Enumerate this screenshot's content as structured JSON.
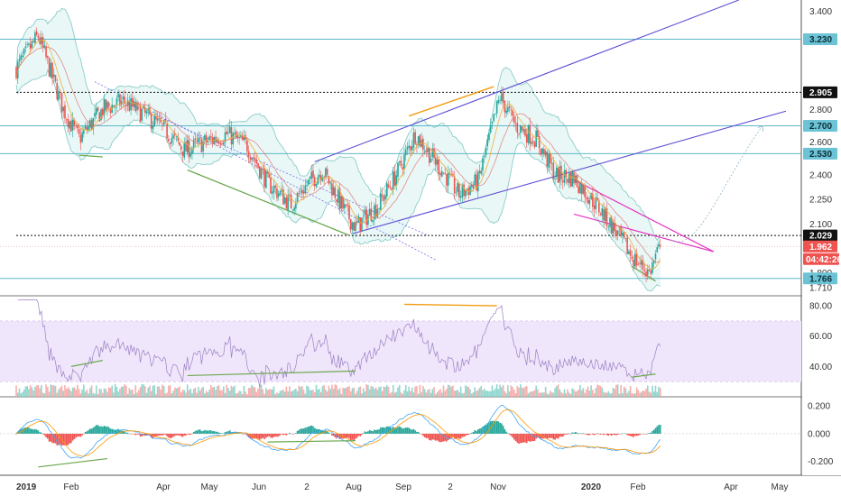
{
  "chart_data": [
    {
      "panel": "price",
      "type": "candlestick",
      "y_scale": "linear",
      "ylim": [
        1.66,
        3.47
      ],
      "y_ticks": [
        "3.400",
        "2.800",
        "2.600",
        "2.400",
        "2.250",
        "2.100",
        "1.800",
        "1.710"
      ],
      "x_ticks": [
        "2019",
        "Feb",
        "Apr",
        "May",
        "Jun",
        "2",
        "Aug",
        "Sep",
        "2",
        "Nov",
        "2020",
        "Feb",
        "Apr",
        "May"
      ],
      "close_path": [
        [
          "2019-01",
          3.05
        ],
        [
          "2019-01-15",
          3.25
        ],
        [
          "2019-01-31",
          2.8
        ],
        [
          "2019-02-10",
          2.62
        ],
        [
          "2019-02-25",
          2.8
        ],
        [
          "2019-03-10",
          2.85
        ],
        [
          "2019-03-25",
          2.76
        ],
        [
          "2019-04-05",
          2.68
        ],
        [
          "2019-04-18",
          2.55
        ],
        [
          "2019-05-01",
          2.6
        ],
        [
          "2019-05-15",
          2.65
        ],
        [
          "2019-05-28",
          2.58
        ],
        [
          "2019-06-10",
          2.35
        ],
        [
          "2019-06-25",
          2.22
        ],
        [
          "2019-07-05",
          2.34
        ],
        [
          "2019-07-15",
          2.43
        ],
        [
          "2019-07-28",
          2.2
        ],
        [
          "2019-08-05",
          2.08
        ],
        [
          "2019-08-20",
          2.22
        ],
        [
          "2019-09-01",
          2.42
        ],
        [
          "2019-09-12",
          2.65
        ],
        [
          "2019-09-28",
          2.44
        ],
        [
          "2019-10-10",
          2.28
        ],
        [
          "2019-10-22",
          2.36
        ],
        [
          "2019-11-05",
          2.88
        ],
        [
          "2019-11-15",
          2.7
        ],
        [
          "2019-11-28",
          2.62
        ],
        [
          "2019-12-10",
          2.4
        ],
        [
          "2019-12-22",
          2.38
        ],
        [
          "2020-01-05",
          2.22
        ],
        [
          "2020-01-18",
          2.05
        ],
        [
          "2020-01-28",
          1.9
        ],
        [
          "2020-02-08",
          1.8
        ],
        [
          "2020-02-15",
          1.962
        ]
      ],
      "horizontal_levels": [
        {
          "label": "3.230",
          "value": 3.23,
          "style": "cyan-line"
        },
        {
          "label": "2.905",
          "value": 2.905,
          "style": "black-dotted"
        },
        {
          "label": "2.700",
          "value": 2.7,
          "style": "cyan-line"
        },
        {
          "label": "2.530",
          "value": 2.53,
          "style": "cyan-line"
        },
        {
          "label": "2.029",
          "value": 2.029,
          "style": "black-dotted"
        },
        {
          "label": "1.962",
          "value": 1.962,
          "style": "red-current"
        },
        {
          "label": "1.766",
          "value": 1.766,
          "style": "cyan-line"
        }
      ],
      "countdown_label": "04:42:26",
      "colors": {
        "up": "#26a69a",
        "down": "#ef5350",
        "channel": "#5b4fd6",
        "wedge": "#e535c3",
        "divergence": "#6aa84f",
        "divergence_top": "#f39c12"
      }
    },
    {
      "panel": "rsi",
      "type": "line",
      "ylim": [
        20,
        86
      ],
      "y_ticks": [
        "80.00",
        "60.00",
        "40.00"
      ],
      "band": [
        30,
        70
      ]
    },
    {
      "panel": "macd",
      "type": "histogram+line",
      "ylim": [
        -0.3,
        0.26
      ],
      "y_ticks": [
        "0.200",
        "0.000",
        "-0.200"
      ]
    }
  ]
}
